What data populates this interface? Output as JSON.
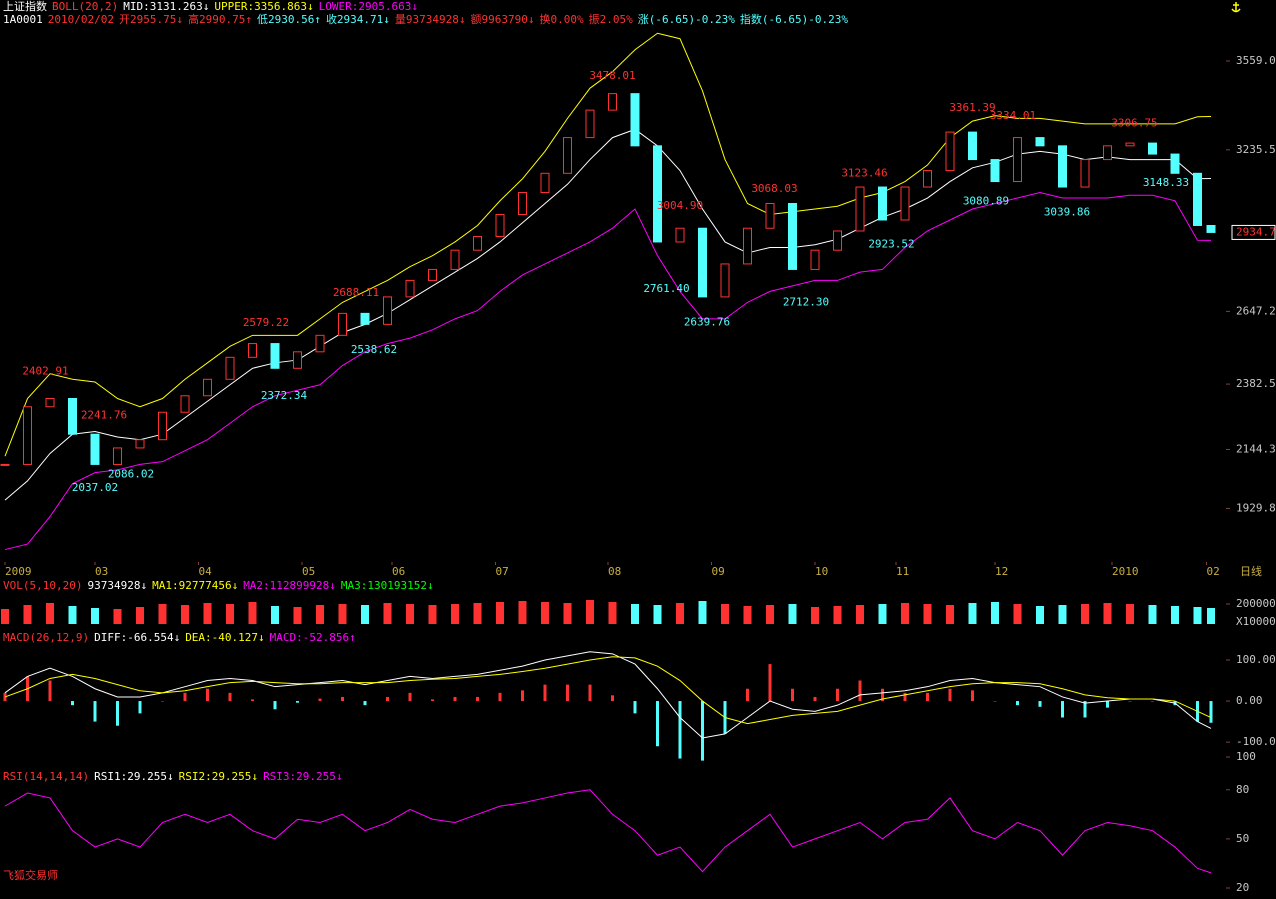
{
  "header": {
    "line1": [
      {
        "text": "上证指数",
        "color": "#ffffff"
      },
      {
        "text": "BOLL(20,2)",
        "color": "#ff3232"
      },
      {
        "text": "MID:3131.263↓",
        "color": "#ffffff"
      },
      {
        "text": "UPPER:3356.863↓",
        "color": "#ffff00"
      },
      {
        "text": "LOWER:2905.663↓",
        "color": "#ff00ff"
      }
    ],
    "line2": [
      {
        "text": "1A0001",
        "color": "#ffffff"
      },
      {
        "text": "2010/02/02",
        "color": "#ff3232"
      },
      {
        "text": "开2955.75↓",
        "color": "#ff3232"
      },
      {
        "text": "高2990.75↑",
        "color": "#ff3232"
      },
      {
        "text": "低2930.56↑",
        "color": "#54ffff"
      },
      {
        "text": "收2934.71↓",
        "color": "#54ffff"
      },
      {
        "text": "量93734928↓",
        "color": "#ff3232"
      },
      {
        "text": "额9963790↓",
        "color": "#ff3232"
      },
      {
        "text": "换0.00%",
        "color": "#ff3232"
      },
      {
        "text": "振2.05%",
        "color": "#ff3232"
      },
      {
        "text": "涨(-6.65)-0.23%",
        "color": "#54ffff"
      },
      {
        "text": "指数(-6.65)-0.23%",
        "color": "#54ffff"
      }
    ],
    "brand": "飞狐交易师"
  },
  "chart_data": [
    {
      "type": "candlestick",
      "period_label": "日线",
      "up_color": "#ff3232",
      "down_color": "#54ffff",
      "x": [
        0,
        5,
        10,
        15,
        20,
        25,
        30,
        35,
        40,
        45,
        50,
        55,
        60,
        65,
        70,
        75,
        80,
        85,
        90,
        95,
        100,
        105,
        110,
        115,
        120,
        125,
        130,
        135,
        140,
        145,
        150,
        155,
        160,
        165,
        170,
        175,
        180,
        185,
        190,
        195,
        200,
        205,
        210,
        215,
        220,
        225,
        230,
        235,
        240,
        245,
        250,
        255,
        260,
        265,
        268
      ],
      "close": [
        2090,
        2300,
        2330,
        2200,
        2090,
        2150,
        2180,
        2280,
        2340,
        2400,
        2480,
        2530,
        2440,
        2500,
        2560,
        2640,
        2600,
        2700,
        2760,
        2800,
        2870,
        2920,
        3000,
        3080,
        3150,
        3280,
        3380,
        3440,
        3250,
        2900,
        2950,
        2700,
        2820,
        2950,
        3040,
        2800,
        2870,
        2940,
        3100,
        2980,
        3100,
        3160,
        3300,
        3200,
        3120,
        3280,
        3250,
        3100,
        3200,
        3250,
        3260,
        3220,
        3150,
        2960,
        2934.7
      ],
      "series": [
        {
          "color": "#ffffff",
          "values": [
            1960,
            2030,
            2130,
            2200,
            2210,
            2190,
            2180,
            2200,
            2260,
            2320,
            2380,
            2440,
            2460,
            2470,
            2520,
            2570,
            2600,
            2640,
            2690,
            2740,
            2790,
            2840,
            2900,
            2970,
            3040,
            3110,
            3200,
            3280,
            3310,
            3250,
            3160,
            3020,
            2900,
            2860,
            2880,
            2880,
            2890,
            2910,
            2950,
            2990,
            3020,
            3060,
            3120,
            3170,
            3190,
            3220,
            3230,
            3220,
            3200,
            3210,
            3200,
            3200,
            3200,
            3130,
            3131.263
          ]
        },
        {
          "color": "#ffff00",
          "values": [
            2120,
            2330,
            2420,
            2400,
            2390,
            2330,
            2300,
            2330,
            2400,
            2460,
            2520,
            2560,
            2560,
            2560,
            2620,
            2680,
            2720,
            2760,
            2810,
            2850,
            2900,
            2960,
            3050,
            3130,
            3230,
            3350,
            3460,
            3520,
            3600,
            3660,
            3640,
            3450,
            3200,
            3040,
            3000,
            3010,
            3020,
            3030,
            3060,
            3080,
            3120,
            3180,
            3280,
            3340,
            3360,
            3350,
            3350,
            3340,
            3330,
            3330,
            3330,
            3330,
            3330,
            3356,
            3356.863
          ]
        },
        {
          "color": "#ff00ff",
          "values": [
            1780,
            1800,
            1900,
            2020,
            2060,
            2070,
            2090,
            2100,
            2140,
            2180,
            2240,
            2300,
            2340,
            2360,
            2380,
            2450,
            2500,
            2530,
            2550,
            2580,
            2620,
            2650,
            2720,
            2780,
            2820,
            2860,
            2900,
            2950,
            3020,
            2850,
            2720,
            2620,
            2620,
            2680,
            2720,
            2740,
            2760,
            2760,
            2790,
            2800,
            2880,
            2940,
            2980,
            3020,
            3040,
            3060,
            3080,
            3060,
            3060,
            3060,
            3070,
            3070,
            3050,
            2906,
            2905.663
          ]
        }
      ],
      "xlim": [
        0,
        268
      ],
      "xticks": [
        {
          "value": 0,
          "label": "2009"
        },
        {
          "value": 20,
          "label": "03"
        },
        {
          "value": 43,
          "label": "04"
        },
        {
          "value": 66,
          "label": "05"
        },
        {
          "value": 86,
          "label": "06"
        },
        {
          "value": 109,
          "label": "07"
        },
        {
          "value": 134,
          "label": "08"
        },
        {
          "value": 157,
          "label": "09"
        },
        {
          "value": 180,
          "label": "10"
        },
        {
          "value": 198,
          "label": "11"
        },
        {
          "value": 220,
          "label": "12"
        },
        {
          "value": 246,
          "label": "2010"
        },
        {
          "value": 267,
          "label": "02"
        }
      ],
      "ylim": [
        1742,
        3781
      ],
      "yticks": [
        {
          "value": 3559,
          "label": "3559.0"
        },
        3235.5,
        2647.2,
        2382.5,
        2144.3,
        1929.8
      ],
      "last_price": 2934.7,
      "annotations": [
        {
          "x": 9,
          "value": 2402.91,
          "label": "2402.91",
          "color": "#ff3232"
        },
        {
          "x": 22,
          "value": 2241.76,
          "label": "2241.76",
          "color": "#ff3232"
        },
        {
          "x": 58,
          "value": 2579.22,
          "label": "2579.22",
          "color": "#ff3232"
        },
        {
          "x": 78,
          "value": 2688.11,
          "label": "2688.11",
          "color": "#ff3232"
        },
        {
          "x": 135,
          "value": 3478.01,
          "label": "3478.01",
          "color": "#ff3232"
        },
        {
          "x": 150,
          "value": 3004.9,
          "label": "3004.90",
          "color": "#ff3232"
        },
        {
          "x": 171,
          "value": 3068.03,
          "label": "3068.03",
          "color": "#ff3232"
        },
        {
          "x": 191,
          "value": 3123.46,
          "label": "3123.46",
          "color": "#ff3232"
        },
        {
          "x": 215,
          "value": 3361.39,
          "label": "3361.39",
          "color": "#ff3232"
        },
        {
          "x": 224,
          "value": 3334.01,
          "label": "3334.01",
          "color": "#ff3232"
        },
        {
          "x": 251,
          "value": 3306.75,
          "label": "3306.75",
          "color": "#ff3232"
        },
        {
          "x": 20,
          "value": 2037.02,
          "label": "2037.02",
          "color": "#54ffff"
        },
        {
          "x": 28,
          "value": 2086.02,
          "label": "2086.02",
          "color": "#54ffff"
        },
        {
          "x": 62,
          "value": 2372.34,
          "label": "2372.34",
          "color": "#54ffff"
        },
        {
          "x": 82,
          "value": 2538.62,
          "label": "2538.62",
          "color": "#54ffff"
        },
        {
          "x": 147,
          "value": 2761.4,
          "label": "2761.40",
          "color": "#54ffff"
        },
        {
          "x": 156,
          "value": 2639.76,
          "label": "2639.76",
          "color": "#54ffff"
        },
        {
          "x": 178,
          "value": 2712.3,
          "label": "2712.30",
          "color": "#54ffff"
        },
        {
          "x": 197,
          "value": 2923.52,
          "label": "2923.52",
          "color": "#54ffff"
        },
        {
          "x": 218,
          "value": 3080.89,
          "label": "3080.89",
          "color": "#54ffff"
        },
        {
          "x": 236,
          "value": 3039.86,
          "label": "3039.86",
          "color": "#54ffff"
        },
        {
          "x": 258,
          "value": 3148.33,
          "label": "3148.33",
          "color": "#54ffff"
        }
      ]
    },
    {
      "type": "bar",
      "header": [
        {
          "text": "VOL(5,10,20)",
          "color": "#ff3232"
        },
        {
          "text": "93734928↓",
          "color": "#ffffff"
        },
        {
          "text": "MA1:92777456↓",
          "color": "#ffff00"
        },
        {
          "text": "MA2:112899928↓",
          "color": "#ff00ff"
        },
        {
          "text": "MA3:130193152↓",
          "color": "#00ff00"
        }
      ],
      "values": [
        150000,
        190000,
        210000,
        180000,
        160000,
        150000,
        170000,
        200000,
        190000,
        210000,
        200000,
        220000,
        180000,
        170000,
        190000,
        200000,
        190000,
        210000,
        200000,
        190000,
        200000,
        210000,
        220000,
        230000,
        220000,
        210000,
        240000,
        220000,
        200000,
        190000,
        210000,
        230000,
        200000,
        180000,
        190000,
        200000,
        170000,
        180000,
        190000,
        200000,
        210000,
        200000,
        190000,
        210000,
        220000,
        200000,
        180000,
        190000,
        200000,
        210000,
        200000,
        190000,
        180000,
        170000,
        160000
      ],
      "ylim": [
        0,
        320000
      ],
      "yticks": [
        200000
      ],
      "unit_label": "X10000"
    },
    {
      "type": "macd",
      "header": [
        {
          "text": "MACD(26,12,9)",
          "color": "#ff3232"
        },
        {
          "text": "DIFF:-66.554↓",
          "color": "#ffffff"
        },
        {
          "text": "DEA:-40.127↓",
          "color": "#ffff00"
        },
        {
          "text": "MACD:-52.856↑",
          "color": "#ff00ff"
        }
      ],
      "series": [
        {
          "color": "#ffffff",
          "values": [
            20,
            60,
            80,
            60,
            30,
            10,
            10,
            20,
            35,
            50,
            55,
            50,
            35,
            40,
            45,
            50,
            40,
            50,
            60,
            55,
            60,
            65,
            75,
            85,
            100,
            110,
            120,
            115,
            90,
            30,
            -40,
            -90,
            -80,
            -40,
            0,
            -20,
            -25,
            -10,
            15,
            20,
            25,
            35,
            50,
            55,
            45,
            40,
            35,
            10,
            -5,
            0,
            5,
            5,
            -5,
            -50,
            -66.554
          ]
        },
        {
          "color": "#ffff00",
          "values": [
            10,
            30,
            55,
            65,
            55,
            40,
            25,
            20,
            25,
            35,
            45,
            48,
            45,
            42,
            42,
            45,
            45,
            45,
            50,
            53,
            55,
            60,
            65,
            72,
            80,
            90,
            100,
            108,
            105,
            85,
            50,
            0,
            -40,
            -55,
            -45,
            -35,
            -30,
            -25,
            -10,
            5,
            15,
            25,
            35,
            42,
            45,
            45,
            42,
            30,
            15,
            8,
            5,
            5,
            0,
            -25,
            -40.127
          ]
        }
      ],
      "values": [
        20,
        60,
        50,
        -10,
        -50,
        -60,
        -30,
        0,
        20,
        30,
        20,
        4,
        -20,
        -4,
        6,
        10,
        -10,
        10,
        20,
        4,
        10,
        10,
        20,
        26,
        40,
        40,
        40,
        14,
        -30,
        -110,
        -140,
        -145,
        -80,
        30,
        90,
        30,
        10,
        30,
        50,
        30,
        20,
        20,
        30,
        26,
        0,
        -10,
        -14,
        -40,
        -40,
        -16,
        0,
        0,
        -10,
        -50,
        -52.856
      ],
      "ylim": [
        -163,
        173
      ],
      "yticks": [
        {
          "value": 100,
          "label": "100.00"
        },
        {
          "value": 0,
          "label": "0.00"
        },
        {
          "value": -100,
          "label": "-100.0"
        }
      ]
    },
    {
      "type": "line",
      "header": [
        {
          "text": "RSI(14,14,14)",
          "color": "#ff3232"
        },
        {
          "text": "RSI1:29.255↓",
          "color": "#ffffff"
        },
        {
          "text": "RSI2:29.255↓",
          "color": "#ffff00"
        },
        {
          "text": "RSI3:29.255↓",
          "color": "#ff00ff"
        }
      ],
      "series": [
        {
          "color": "#ff00ff",
          "values": [
            70,
            78,
            75,
            55,
            45,
            50,
            45,
            60,
            65,
            60,
            65,
            55,
            50,
            62,
            60,
            65,
            55,
            60,
            68,
            62,
            60,
            65,
            70,
            72,
            75,
            78,
            80,
            65,
            55,
            40,
            45,
            30,
            45,
            55,
            65,
            45,
            50,
            55,
            60,
            50,
            60,
            62,
            75,
            55,
            50,
            60,
            55,
            40,
            55,
            60,
            58,
            55,
            45,
            32,
            29.255
          ]
        }
      ],
      "ylim": [
        20,
        100
      ],
      "yticks": [
        100,
        80,
        50,
        20
      ]
    }
  ]
}
